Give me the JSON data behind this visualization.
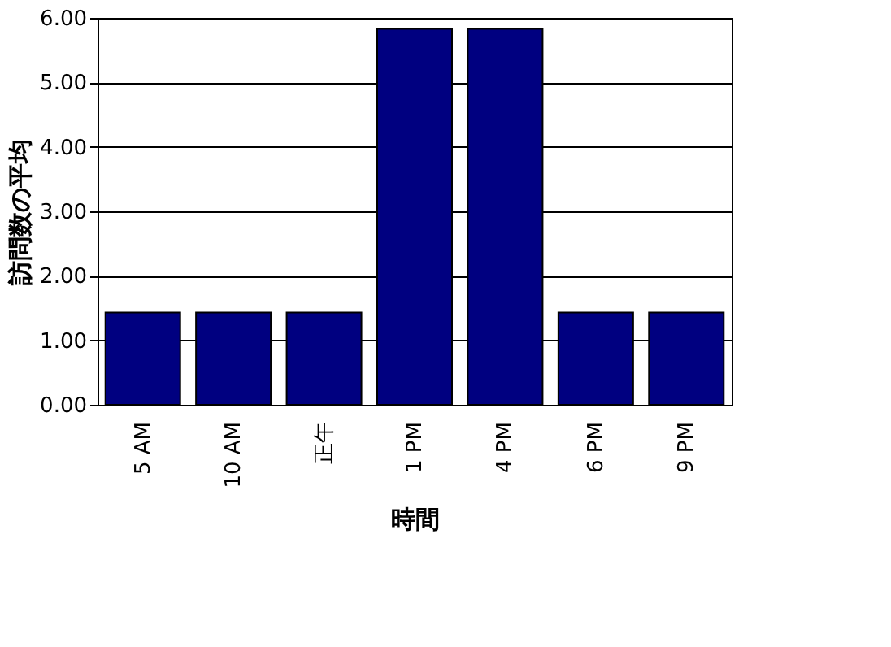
{
  "chart_data": {
    "type": "bar",
    "categories": [
      "5 AM",
      "10 AM",
      "正午",
      "1 PM",
      "4 PM",
      "6 PM",
      "9 PM"
    ],
    "values": [
      1.43,
      1.43,
      1.43,
      5.83,
      5.83,
      1.43,
      1.43
    ],
    "color": "#000080",
    "xlabel": "時間",
    "ylabel": "訪問数の平均",
    "ylim": [
      0,
      6
    ],
    "yticks": [
      {
        "value": 0,
        "label": "0.00"
      },
      {
        "value": 1,
        "label": "1.00"
      },
      {
        "value": 2,
        "label": "2.00"
      },
      {
        "value": 3,
        "label": "3.00"
      },
      {
        "value": 4,
        "label": "4.00"
      },
      {
        "value": 5,
        "label": "5.00"
      },
      {
        "value": 6,
        "label": "6.00"
      }
    ],
    "grid": "y",
    "legend": false
  }
}
